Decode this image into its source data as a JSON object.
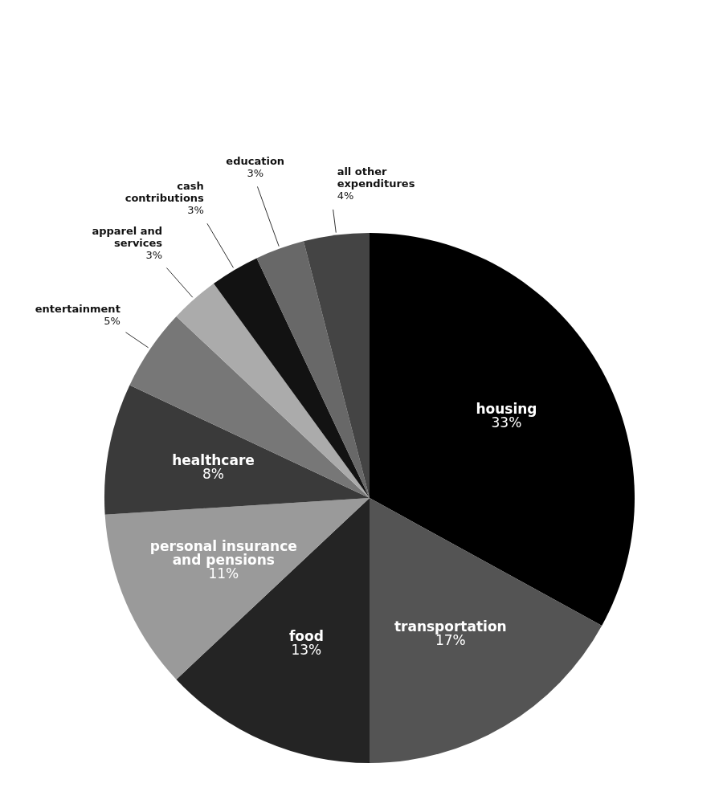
{
  "chart_data": {
    "type": "pie",
    "categories": [
      "housing",
      "transportation",
      "food",
      "personal insurance and pensions",
      "healthcare",
      "entertainment",
      "apparel and services",
      "cash contributions",
      "education",
      "all other expenditures"
    ],
    "values": [
      33,
      17,
      13,
      11,
      8,
      5,
      3,
      3,
      3,
      4
    ],
    "value_labels": [
      "33%",
      "17%",
      "13%",
      "11%",
      "8%",
      "5%",
      "3%",
      "3%",
      "3%",
      "4%"
    ],
    "colors": [
      "#000000",
      "#545454",
      "#242424",
      "#9a9a9a",
      "#3a3a3a",
      "#777777",
      "#ababab",
      "#121212",
      "#686868",
      "#444444"
    ]
  }
}
